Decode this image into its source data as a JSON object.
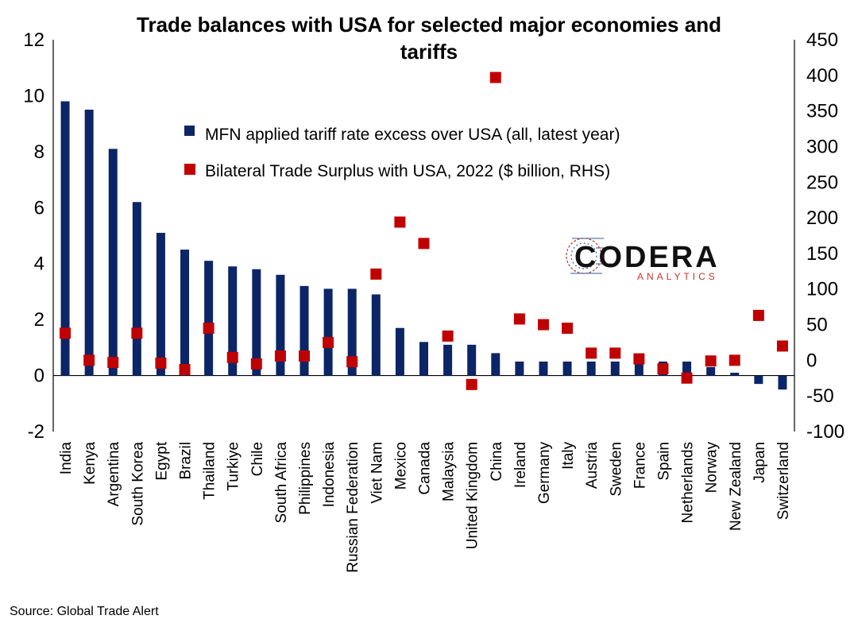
{
  "chart_data": {
    "type": "bar",
    "title_line1": "Trade balances with USA for selected major economies and",
    "title_line2": "tariffs",
    "categories": [
      "India",
      "Kenya",
      "Argentina",
      "South Korea",
      "Egypt",
      "Brazil",
      "Thailand",
      "Turkiye",
      "Chile",
      "South Africa",
      "Philippines",
      "Indonesia",
      "Russian Federation",
      "Viet Nam",
      "Mexico",
      "Canada",
      "Malaysia",
      "United Kingdom",
      "China",
      "Ireland",
      "Germany",
      "Italy",
      "Austria",
      "Sweden",
      "France",
      "Spain",
      "Netherlands",
      "Norway",
      "New Zealand",
      "Japan",
      "Switzerland"
    ],
    "series": [
      {
        "name": "MFN applied tariff rate excess over USA (all, latest year)",
        "type": "bar",
        "axis": "left",
        "color": "#0b2566",
        "values": [
          9.8,
          9.5,
          8.1,
          6.2,
          5.1,
          4.5,
          4.1,
          3.9,
          3.8,
          3.6,
          3.2,
          3.1,
          3.1,
          2.9,
          1.7,
          1.2,
          1.1,
          1.1,
          0.8,
          0.5,
          0.5,
          0.5,
          0.5,
          0.5,
          0.5,
          0.5,
          0.5,
          0.3,
          0.1,
          -0.3,
          -0.5
        ]
      },
      {
        "name": "Bilateral Trade Surplus with USA, 2022 ($ billion, RHS)",
        "type": "scatter",
        "axis": "right",
        "color": "#c00000",
        "values": [
          38,
          0,
          -3,
          38,
          -4,
          -13,
          45,
          4,
          -5,
          6,
          6,
          25,
          -2,
          121,
          194,
          164,
          34,
          -34,
          397,
          58,
          50,
          45,
          10,
          10,
          2,
          -12,
          -25,
          -1,
          0,
          63,
          20
        ]
      }
    ],
    "yaxis_left": {
      "min": -2,
      "max": 12,
      "ticks": [
        "-2",
        "0",
        "2",
        "4",
        "6",
        "8",
        "10",
        "12"
      ]
    },
    "yaxis_right": {
      "min": -100,
      "max": 450,
      "ticks": [
        "-100",
        "-50",
        "0",
        "50",
        "100",
        "150",
        "200",
        "250",
        "300",
        "350",
        "400",
        "450"
      ]
    },
    "legend_position": "upper-center",
    "grid": false
  },
  "source": "Source: Global Trade Alert",
  "logo": {
    "main": "CODERA",
    "sub": "ANALYTICS"
  }
}
